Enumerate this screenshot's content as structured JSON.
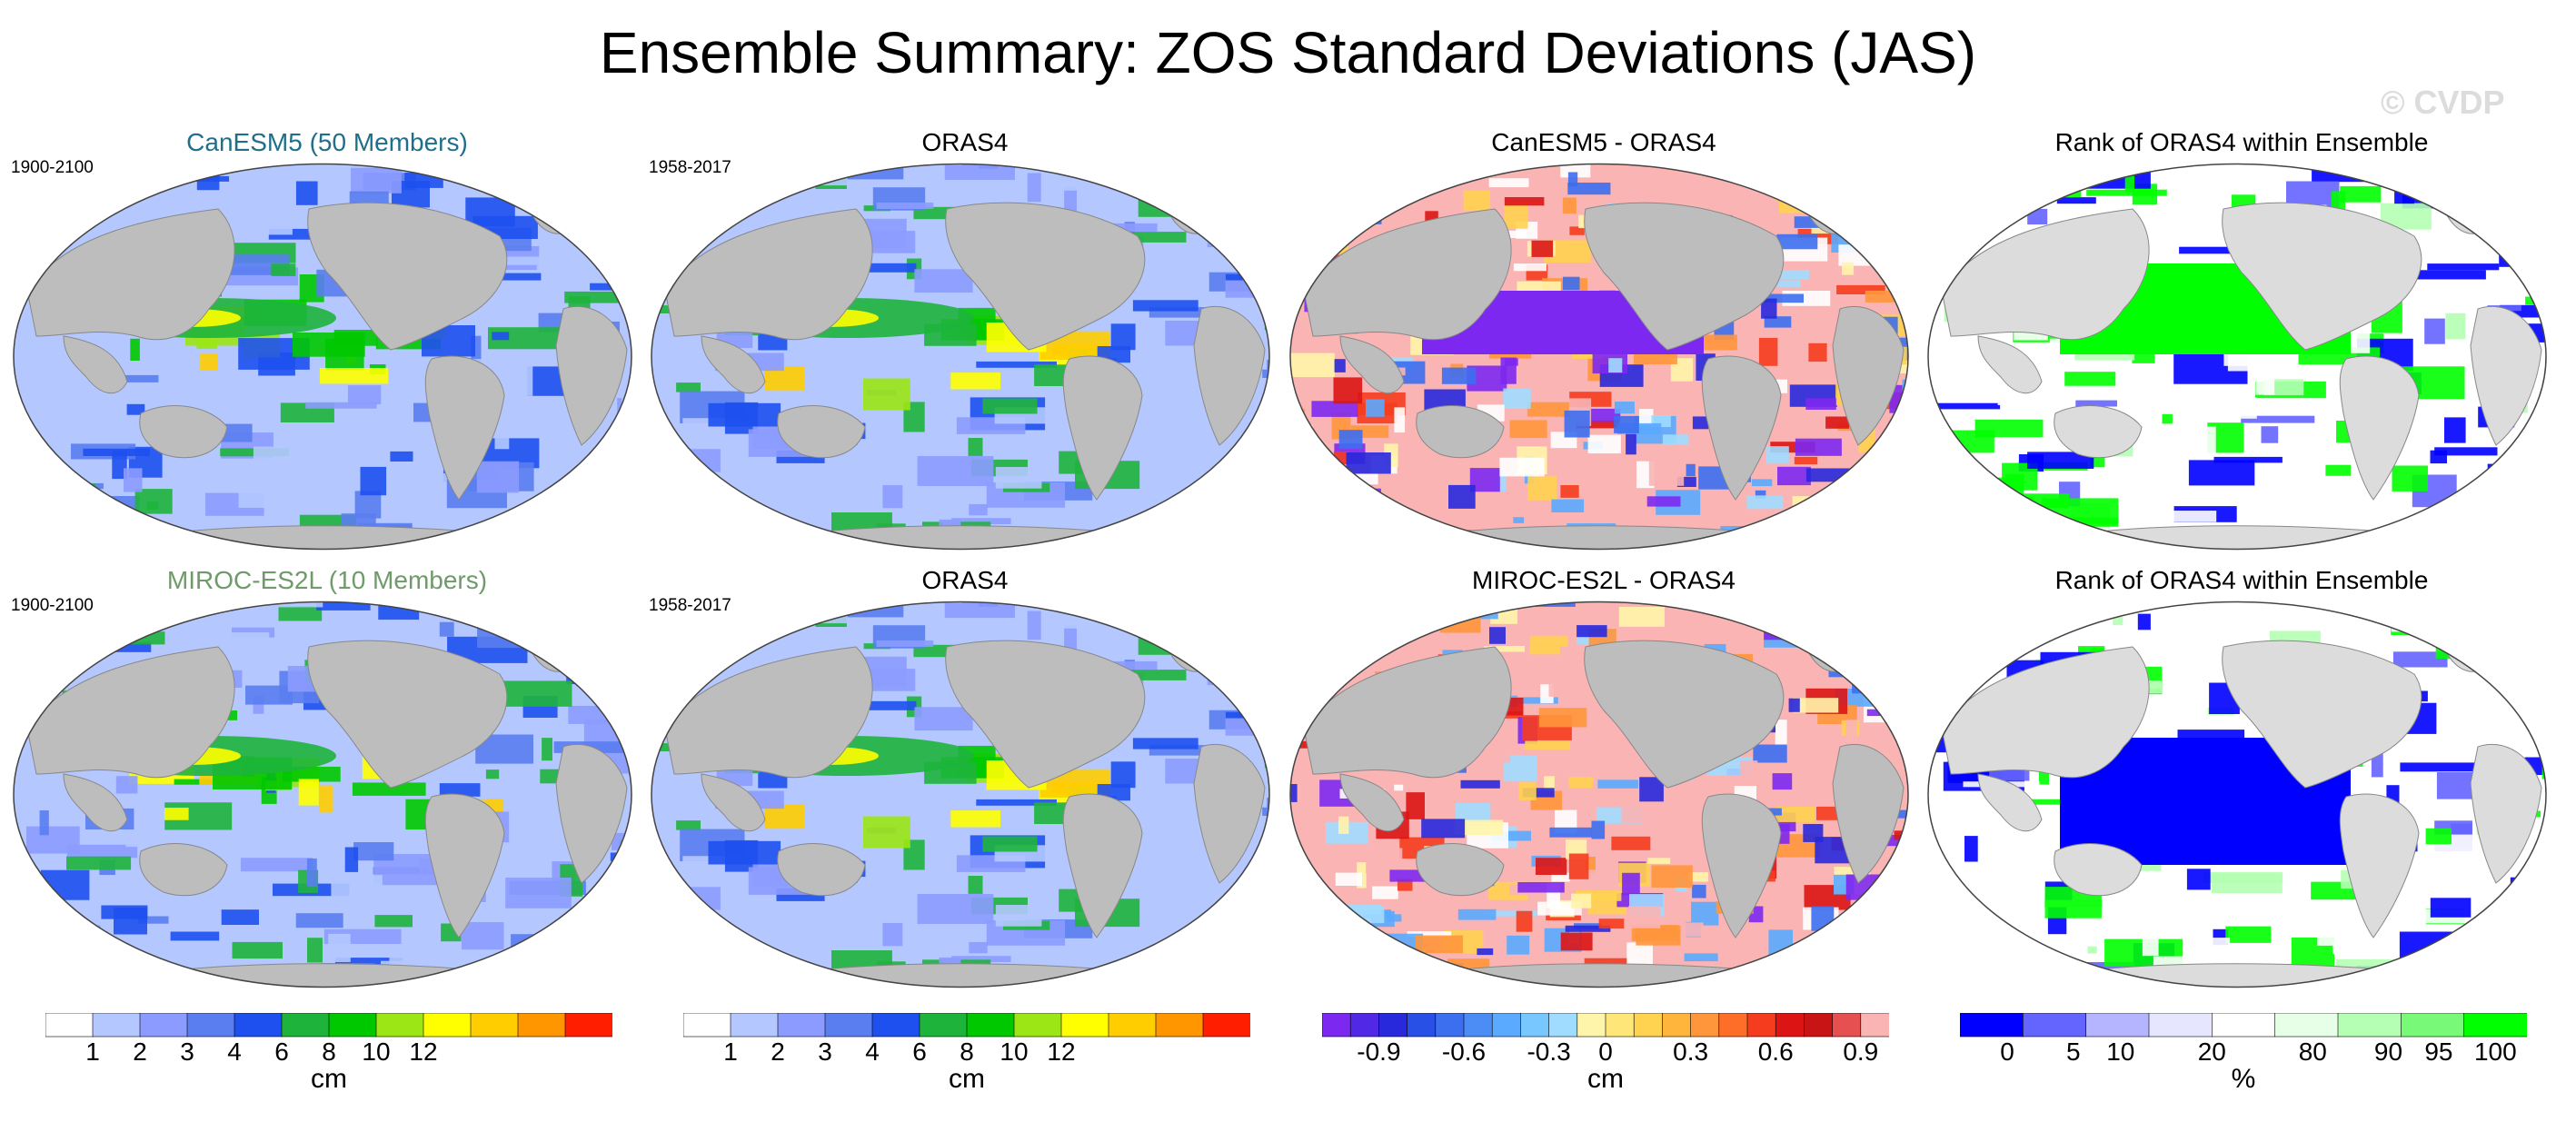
{
  "title": "Ensemble Summary: ZOS Standard Deviations (JAS)",
  "watermark": "© CVDP",
  "colors": {
    "land": "#bdbdbd",
    "land_light": "#dcdcdc",
    "ocean_border": "#444444"
  },
  "rows": [
    {
      "panels": [
        {
          "title": "CanESM5 (50 Members)",
          "title_color": "#1f6f8b",
          "period": "1900-2100",
          "kind": "sd",
          "variant": 1
        },
        {
          "title": "ORAS4",
          "title_color": "#000000",
          "period": "1958-2017",
          "kind": "sd",
          "variant": 2
        },
        {
          "title": "CanESM5 - ORAS4",
          "title_color": "#000000",
          "period": "",
          "kind": "diff",
          "variant": 3
        },
        {
          "title": "Rank of ORAS4 within Ensemble",
          "title_color": "#000000",
          "period": "",
          "kind": "rank",
          "variant": 4
        }
      ]
    },
    {
      "panels": [
        {
          "title": "MIROC-ES2L (10 Members)",
          "title_color": "#6f9a6a",
          "period": "1900-2100",
          "kind": "sd",
          "variant": 5
        },
        {
          "title": "ORAS4",
          "title_color": "#000000",
          "period": "1958-2017",
          "kind": "sd",
          "variant": 2
        },
        {
          "title": "MIROC-ES2L - ORAS4",
          "title_color": "#000000",
          "period": "",
          "kind": "diff",
          "variant": 6
        },
        {
          "title": "Rank of ORAS4 within Ensemble",
          "title_color": "#000000",
          "period": "",
          "kind": "rank",
          "variant": 7
        }
      ]
    }
  ],
  "colorbars": [
    {
      "kind": "sd",
      "unit": "cm",
      "colors": [
        "#ffffff",
        "#b4c8ff",
        "#8c9bff",
        "#5a7df0",
        "#1e50f0",
        "#1eb43c",
        "#00c800",
        "#9be614",
        "#ffff00",
        "#ffcd00",
        "#ff9600",
        "#ff1e00"
      ],
      "ticks": [
        "1",
        "2",
        "3",
        "4",
        "6",
        "8",
        "10",
        "12"
      ]
    },
    {
      "kind": "sd",
      "unit": "cm",
      "colors": [
        "#ffffff",
        "#b4c8ff",
        "#8c9bff",
        "#5a7df0",
        "#1e50f0",
        "#1eb43c",
        "#00c800",
        "#9be614",
        "#ffff00",
        "#ffcd00",
        "#ff9600",
        "#ff1e00"
      ],
      "ticks": [
        "1",
        "2",
        "3",
        "4",
        "6",
        "8",
        "10",
        "12"
      ]
    },
    {
      "kind": "diff",
      "unit": "cm",
      "colors": [
        "#7d28f0",
        "#5028e6",
        "#2828dc",
        "#2850e6",
        "#3c6ef0",
        "#4b8cf5",
        "#5aaaff",
        "#78c8ff",
        "#a0dcff",
        "#fff5aa",
        "#ffe678",
        "#ffd250",
        "#ffb43c",
        "#ff963c",
        "#ff6e28",
        "#f53c1e",
        "#dc1414",
        "#c81414",
        "#e65050",
        "#fab4b4"
      ],
      "ticks": [
        "-0.9",
        "-0.6",
        "-0.3",
        "0",
        "0.3",
        "0.6",
        "0.9"
      ]
    },
    {
      "kind": "rank",
      "unit": "%",
      "colors": [
        "#0000ff",
        "#6464ff",
        "#b4b4ff",
        "#e6e6ff",
        "#ffffff",
        "#e6ffe6",
        "#b4ffb4",
        "#78fa78",
        "#00ff00"
      ],
      "ticks": [
        "0",
        "5",
        "10",
        "20",
        "80",
        "90",
        "95",
        "100"
      ]
    }
  ]
}
